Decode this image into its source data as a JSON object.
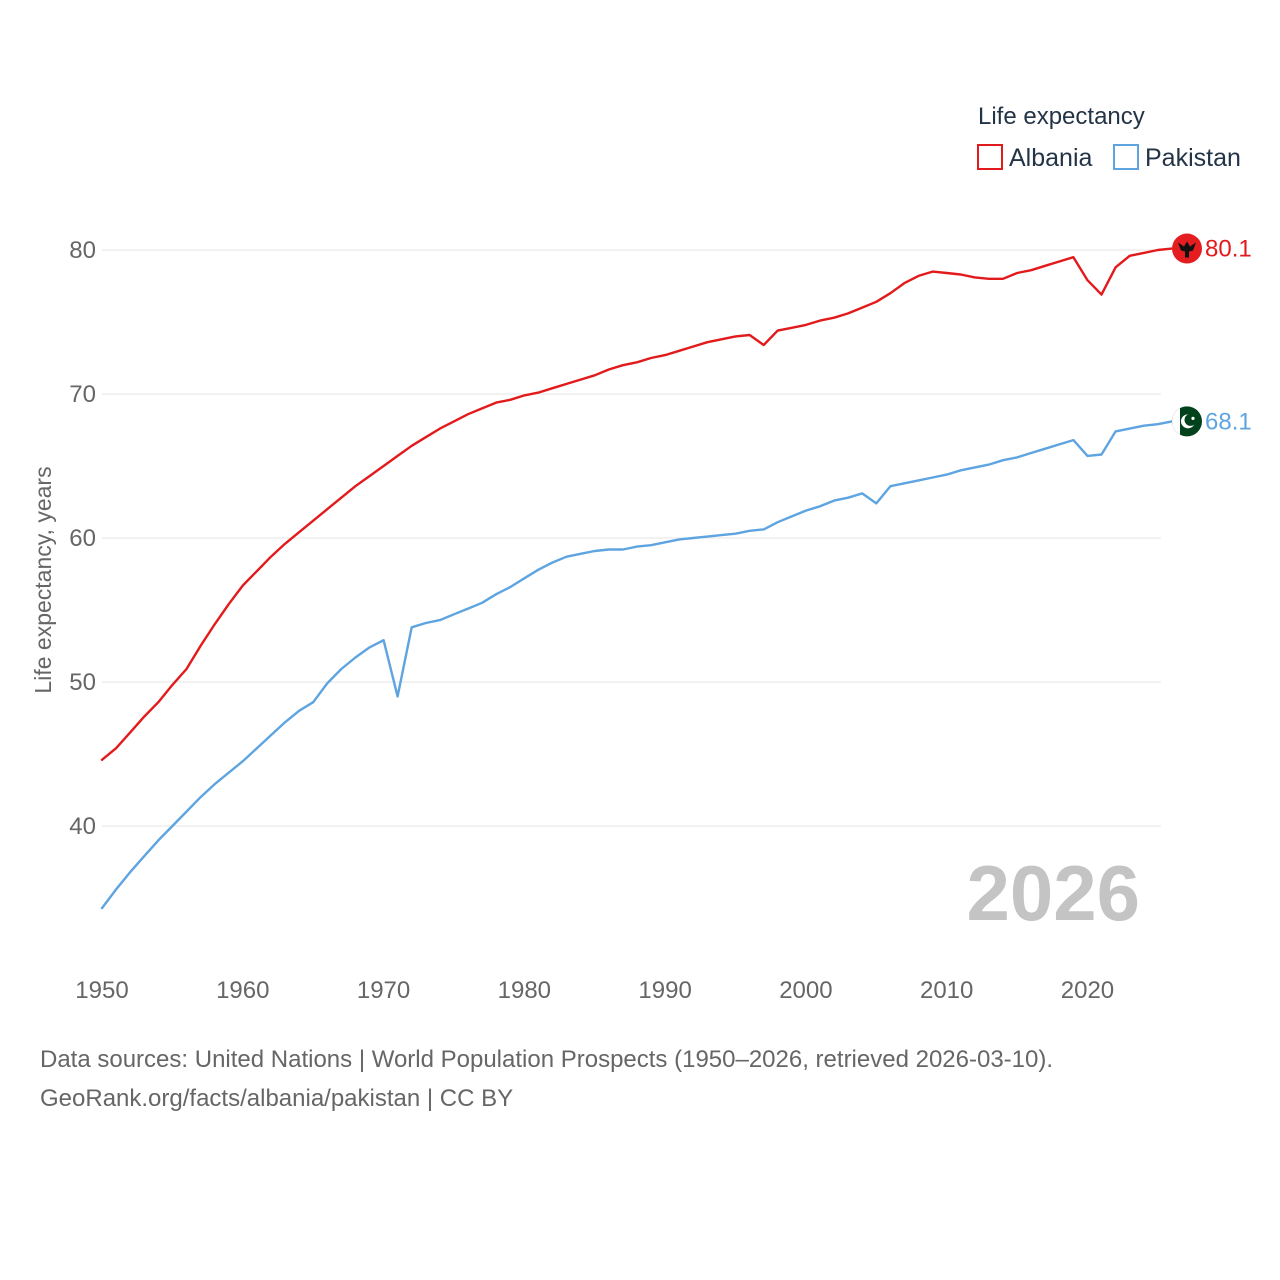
{
  "chart_data": {
    "type": "line",
    "title": "",
    "xlabel": "",
    "ylabel": "Life expectancy, years",
    "xlim": [
      1950,
      2026
    ],
    "ylim": [
      34,
      81
    ],
    "x_ticks": [
      "1950",
      "1960",
      "1970",
      "1980",
      "1990",
      "2000",
      "2010",
      "2020"
    ],
    "y_ticks": [
      "40",
      "50",
      "60",
      "70",
      "80"
    ],
    "legend_title": "Life expectancy",
    "legend_position": "top-right",
    "year_label": "2026",
    "x": [
      1950,
      1951,
      1952,
      1953,
      1954,
      1955,
      1956,
      1957,
      1958,
      1959,
      1960,
      1961,
      1962,
      1963,
      1964,
      1965,
      1966,
      1967,
      1968,
      1969,
      1970,
      1971,
      1972,
      1973,
      1974,
      1975,
      1976,
      1977,
      1978,
      1979,
      1980,
      1981,
      1982,
      1983,
      1984,
      1985,
      1986,
      1987,
      1988,
      1989,
      1990,
      1991,
      1992,
      1993,
      1994,
      1995,
      1996,
      1997,
      1998,
      1999,
      2000,
      2001,
      2002,
      2003,
      2004,
      2005,
      2006,
      2007,
      2008,
      2009,
      2010,
      2011,
      2012,
      2013,
      2014,
      2015,
      2016,
      2017,
      2018,
      2019,
      2020,
      2021,
      2022,
      2023,
      2024,
      2025,
      2026
    ],
    "series": [
      {
        "name": "Albania",
        "color": "#e31a1c",
        "end_label": "80.1",
        "flag_icon": "albania-flag-icon",
        "values": [
          44.6,
          45.4,
          46.5,
          47.6,
          48.6,
          49.8,
          50.9,
          52.5,
          54.0,
          55.4,
          56.7,
          57.7,
          58.7,
          59.6,
          60.4,
          61.2,
          62.0,
          62.8,
          63.6,
          64.3,
          65.0,
          65.7,
          66.4,
          67.0,
          67.6,
          68.1,
          68.6,
          69.0,
          69.4,
          69.6,
          69.9,
          70.1,
          70.4,
          70.7,
          71.0,
          71.3,
          71.7,
          72.0,
          72.2,
          72.5,
          72.7,
          73.0,
          73.3,
          73.6,
          73.8,
          74.0,
          74.1,
          73.4,
          74.4,
          74.6,
          74.8,
          75.1,
          75.3,
          75.6,
          76.0,
          76.4,
          77.0,
          77.7,
          78.2,
          78.5,
          78.4,
          78.3,
          78.1,
          78.0,
          78.0,
          78.4,
          78.6,
          78.9,
          79.2,
          79.5,
          77.9,
          76.9,
          78.8,
          79.6,
          79.8,
          80.0,
          80.1
        ]
      },
      {
        "name": "Pakistan",
        "color": "#5ea4e0",
        "end_label": "68.1",
        "flag_icon": "pakistan-flag-icon",
        "values": [
          34.3,
          35.6,
          36.8,
          37.9,
          39.0,
          40.0,
          41.0,
          42.0,
          42.9,
          43.7,
          44.5,
          45.4,
          46.3,
          47.2,
          48.0,
          48.6,
          49.9,
          50.9,
          51.7,
          52.4,
          52.9,
          49.0,
          53.8,
          54.1,
          54.3,
          54.7,
          55.1,
          55.5,
          56.1,
          56.6,
          57.2,
          57.8,
          58.3,
          58.7,
          58.9,
          59.1,
          59.2,
          59.2,
          59.4,
          59.5,
          59.7,
          59.9,
          60.0,
          60.1,
          60.2,
          60.3,
          60.5,
          60.6,
          61.1,
          61.5,
          61.9,
          62.2,
          62.6,
          62.8,
          63.1,
          62.4,
          63.6,
          63.8,
          64.0,
          64.2,
          64.4,
          64.7,
          64.9,
          65.1,
          65.4,
          65.6,
          65.9,
          66.2,
          66.5,
          66.8,
          65.7,
          65.8,
          67.4,
          67.6,
          67.8,
          67.9,
          68.1
        ]
      }
    ]
  },
  "footer": {
    "line1": "Data sources: United Nations | World Population Prospects (1950–2026, retrieved 2026-03-10).",
    "line2": "GeoRank.org/facts/albania/pakistan | CC BY"
  }
}
